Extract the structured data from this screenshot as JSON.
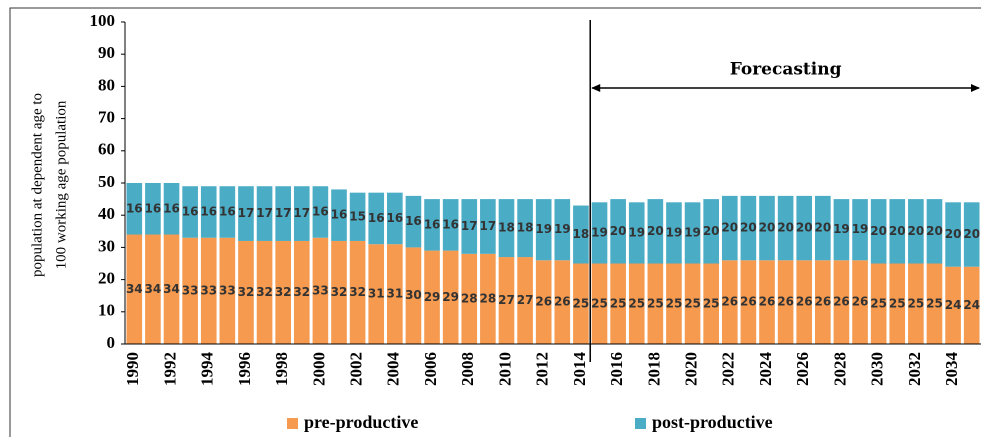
{
  "chart_data": {
    "type": "stacked_bar",
    "y_label": [
      "population at dependent age to",
      "100 working age population"
    ],
    "annotation": "Forecasting",
    "categories": [
      "1990",
      null,
      "1992",
      null,
      "1994",
      null,
      "1996",
      null,
      "1998",
      null,
      "2000",
      null,
      "2002",
      null,
      "2004",
      null,
      "2006",
      null,
      "2008",
      null,
      "2010",
      null,
      "2012",
      null,
      "2014",
      null,
      "2016",
      null,
      "2018",
      null,
      "2020",
      null,
      "2022",
      null,
      "2024",
      null,
      "2026",
      null,
      "2028",
      null,
      "2030",
      null,
      "2032",
      null,
      "2034",
      null
    ],
    "series": [
      {
        "name": "pre-productive",
        "color": "#f59a4f",
        "values": [
          34,
          34,
          34,
          33,
          33,
          33,
          32,
          32,
          32,
          32,
          33,
          32,
          32,
          31,
          31,
          30,
          29,
          29,
          28,
          28,
          27,
          27,
          26,
          26,
          25,
          25,
          25,
          25,
          25,
          25,
          25,
          25,
          26,
          26,
          26,
          26,
          26,
          26,
          26,
          26,
          25,
          25,
          25,
          25,
          24,
          24
        ]
      },
      {
        "name": "post-productive",
        "color": "#4bacc6",
        "values": [
          16,
          16,
          16,
          16,
          16,
          16,
          17,
          17,
          17,
          17,
          16,
          16,
          15,
          16,
          16,
          16,
          16,
          16,
          17,
          17,
          18,
          18,
          19,
          19,
          18,
          19,
          20,
          19,
          20,
          19,
          19,
          20,
          20,
          20,
          20,
          20,
          20,
          20,
          19,
          19,
          20,
          20,
          20,
          20,
          20,
          20
        ]
      }
    ],
    "ylim": [
      0,
      100
    ],
    "yticks": [
      0,
      10,
      20,
      30,
      40,
      50,
      60,
      70,
      80,
      90,
      100
    ],
    "legend": "bottom"
  }
}
